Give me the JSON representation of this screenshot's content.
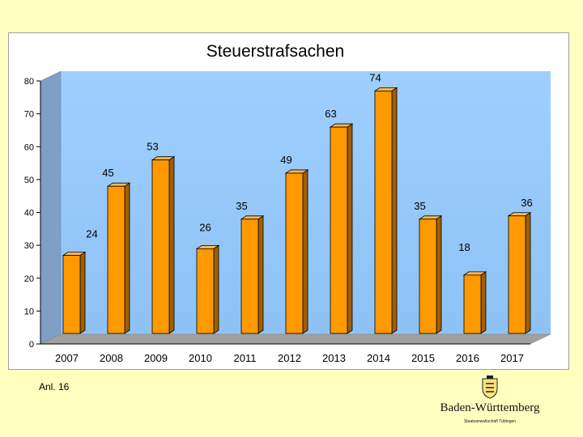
{
  "chart_data": {
    "type": "bar",
    "title": "Steuerstrafsachen",
    "categories": [
      "2007",
      "2008",
      "2009",
      "2010",
      "2011",
      "2012",
      "2013",
      "2014",
      "2015",
      "2016",
      "2017"
    ],
    "values": [
      24,
      45,
      53,
      26,
      35,
      49,
      63,
      74,
      35,
      18,
      36
    ],
    "ylim": [
      0,
      80
    ],
    "yticks": [
      0,
      10,
      20,
      30,
      40,
      50,
      60,
      70,
      80
    ],
    "xlabel": "",
    "ylabel": "",
    "grid": false,
    "bar_color": "#FF9900",
    "wall_color": "#99CCFF",
    "floor_color": "#A0A0A0"
  },
  "footer": {
    "note": "Anl. 16"
  },
  "brand": {
    "name": "Baden-Württemberg",
    "subtitle": "Staatsanwaltschaft Tübingen"
  }
}
